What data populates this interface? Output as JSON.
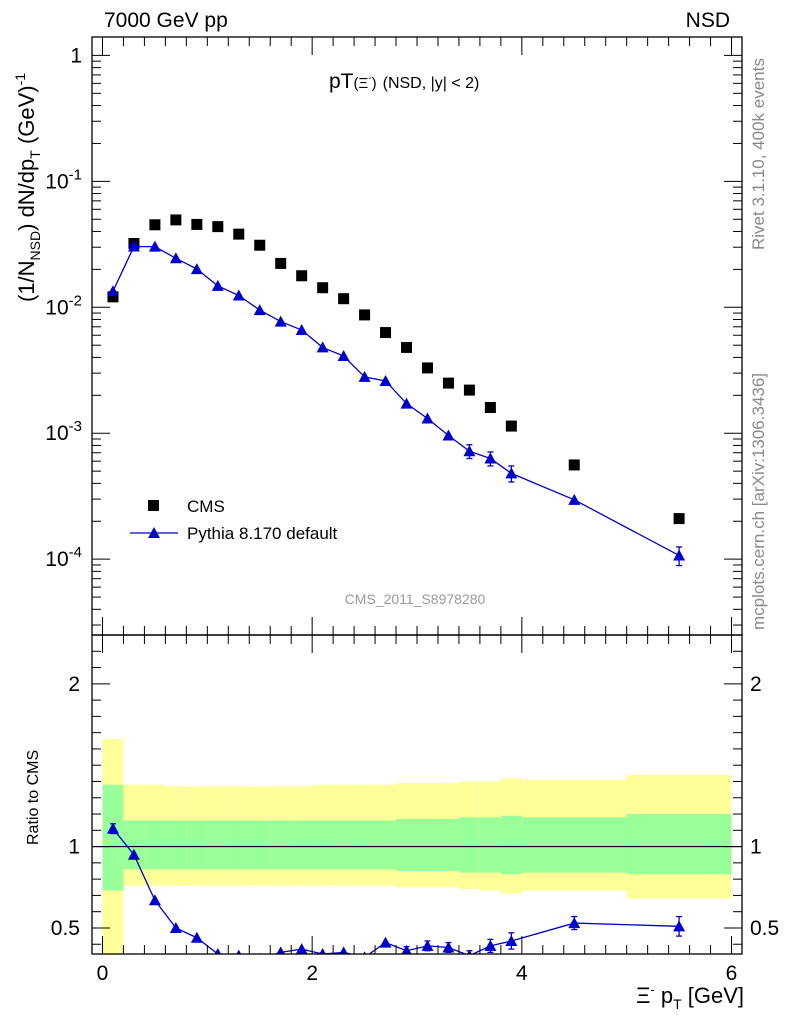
{
  "header": {
    "left": "7000 GeV pp",
    "right": "NSD"
  },
  "side_labels": {
    "rivet": "Rivet 3.1.10,  400k events",
    "mcplots": "mcplots.cern.ch [arXiv:1306.3436]"
  },
  "plot_title": {
    "main": "pT",
    "particle": "(Ξ",
    "particle_sup": "-",
    "particle_close": ")",
    "cuts": "(NSD, |y| < 2)"
  },
  "analysis_tag": "CMS_2011_S8978280",
  "y_axis": {
    "text_1": "(1/N",
    "sub_1": "NSD",
    "text_2": ") dN/dp",
    "sub_2": "T",
    "text_3": " (GeV)",
    "sup_3": "-1"
  },
  "ratio_y_label": "Ratio to CMS",
  "x_axis": {
    "text_1": "Ξ",
    "sup_1": "-",
    "text_2": " p",
    "sub_2": "T",
    "text_3": " [GeV]"
  },
  "legend": [
    {
      "label": "CMS",
      "marker": "square",
      "color": "#000000"
    },
    {
      "label": "Pythia 8.170 default",
      "marker": "triangle",
      "color": "#0000cc"
    }
  ],
  "chart_data": {
    "type": "scatter",
    "x_label": "Ξ- pT [GeV]",
    "y_label": "(1/NNSD) dN/dpT (GeV)-1",
    "x_range": [
      -0.1,
      6.1
    ],
    "y_range": [
      2.5e-05,
      1.4
    ],
    "y_scale": "log",
    "y_tick_labels": [
      "10^-4",
      "10^-3",
      "10^-2",
      "10^-1",
      "1"
    ],
    "x_tick_labels": [
      "0",
      "2",
      "4",
      "6"
    ],
    "legend_position": "bottom-left",
    "series": [
      {
        "name": "CMS",
        "color": "#000000",
        "marker": "square",
        "x": [
          0.1,
          0.3,
          0.5,
          0.7,
          0.9,
          1.1,
          1.3,
          1.5,
          1.7,
          1.9,
          2.1,
          2.3,
          2.5,
          2.7,
          2.9,
          3.1,
          3.3,
          3.5,
          3.7,
          3.9,
          4.5,
          5.5
        ],
        "y": [
          0.0121,
          0.0321,
          0.0452,
          0.0494,
          0.0455,
          0.0437,
          0.0381,
          0.0311,
          0.0223,
          0.0178,
          0.0143,
          0.0117,
          0.0087,
          0.0063,
          0.0048,
          0.0033,
          0.0025,
          0.0022,
          0.0016,
          0.00114,
          0.00056,
          0.00021
        ]
      },
      {
        "name": "Pythia 8.170 default",
        "color": "#0000cc",
        "marker": "triangle",
        "x": [
          0.1,
          0.3,
          0.5,
          0.7,
          0.9,
          1.1,
          1.3,
          1.5,
          1.7,
          1.9,
          2.1,
          2.3,
          2.5,
          2.7,
          2.9,
          3.1,
          3.3,
          3.5,
          3.7,
          3.9,
          4.5,
          5.5
        ],
        "y": [
          0.0134,
          0.0304,
          0.0303,
          0.0245,
          0.0201,
          0.0148,
          0.0124,
          0.0095,
          0.0077,
          0.0066,
          0.0048,
          0.0041,
          0.0028,
          0.0026,
          0.00172,
          0.00131,
          0.00096,
          0.00072,
          0.00063,
          0.00048,
          0.000296,
          0.000107
        ],
        "y_err": [
          0.0003,
          0.0004,
          0.0004,
          0.0004,
          0.0003,
          0.0003,
          0.0003,
          0.0002,
          0.0002,
          0.0002,
          0.00015,
          0.00015,
          0.00012,
          0.00012,
          0.00012,
          0.00011,
          0.0001,
          9e-05,
          8e-05,
          7e-05,
          3e-05,
          1.8e-05
        ]
      }
    ],
    "ratio": {
      "y_label": "Ratio to CMS",
      "y_range": [
        0.34,
        2.3
      ],
      "y_tick_labels": [
        "0.5",
        "1",
        "2"
      ],
      "reference_line": 1,
      "uncertainty_bands": {
        "edges": [
          0.0,
          0.2,
          0.4,
          0.6,
          0.8,
          1.0,
          1.2,
          1.4,
          1.6,
          1.8,
          2.0,
          2.2,
          2.4,
          2.6,
          2.8,
          3.0,
          3.2,
          3.4,
          3.6,
          3.8,
          4.0,
          5.0,
          6.0
        ],
        "inner_color": "#99ff99",
        "outer_color": "#ffff99",
        "inner_up": [
          1.38,
          1.16,
          1.16,
          1.16,
          1.16,
          1.16,
          1.16,
          1.16,
          1.16,
          1.16,
          1.16,
          1.16,
          1.16,
          1.16,
          1.17,
          1.17,
          1.17,
          1.18,
          1.18,
          1.19,
          1.18,
          1.2
        ],
        "inner_down": [
          0.73,
          0.86,
          0.86,
          0.86,
          0.86,
          0.86,
          0.86,
          0.86,
          0.86,
          0.86,
          0.86,
          0.86,
          0.86,
          0.86,
          0.85,
          0.85,
          0.85,
          0.84,
          0.84,
          0.83,
          0.84,
          0.83
        ],
        "outer_up": [
          1.66,
          1.38,
          1.38,
          1.37,
          1.37,
          1.37,
          1.37,
          1.37,
          1.37,
          1.37,
          1.38,
          1.38,
          1.38,
          1.38,
          1.39,
          1.39,
          1.39,
          1.4,
          1.4,
          1.42,
          1.41,
          1.44
        ],
        "outer_down": [
          0.0,
          0.76,
          0.76,
          0.76,
          0.76,
          0.76,
          0.76,
          0.76,
          0.76,
          0.76,
          0.76,
          0.76,
          0.76,
          0.76,
          0.75,
          0.75,
          0.75,
          0.74,
          0.73,
          0.71,
          0.73,
          0.68
        ]
      },
      "series": {
        "name": "Pythia 8.170 default",
        "color": "#0000cc",
        "x": [
          0.1,
          0.3,
          0.5,
          0.7,
          0.9,
          1.1,
          1.3,
          1.5,
          1.7,
          1.9,
          2.1,
          2.3,
          2.5,
          2.7,
          2.9,
          3.1,
          3.3,
          3.5,
          3.7,
          3.9,
          4.5,
          5.5
        ],
        "y": [
          1.11,
          0.95,
          0.67,
          0.5,
          0.44,
          0.34,
          0.33,
          0.31,
          0.35,
          0.37,
          0.34,
          0.35,
          0.32,
          0.41,
          0.36,
          0.39,
          0.38,
          0.33,
          0.39,
          0.42,
          0.53,
          0.51
        ],
        "y_err": [
          0.03,
          0.015,
          0.012,
          0.012,
          0.012,
          0.01,
          0.01,
          0.01,
          0.012,
          0.012,
          0.012,
          0.012,
          0.015,
          0.02,
          0.025,
          0.03,
          0.03,
          0.03,
          0.04,
          0.05,
          0.04,
          0.06
        ]
      }
    }
  }
}
